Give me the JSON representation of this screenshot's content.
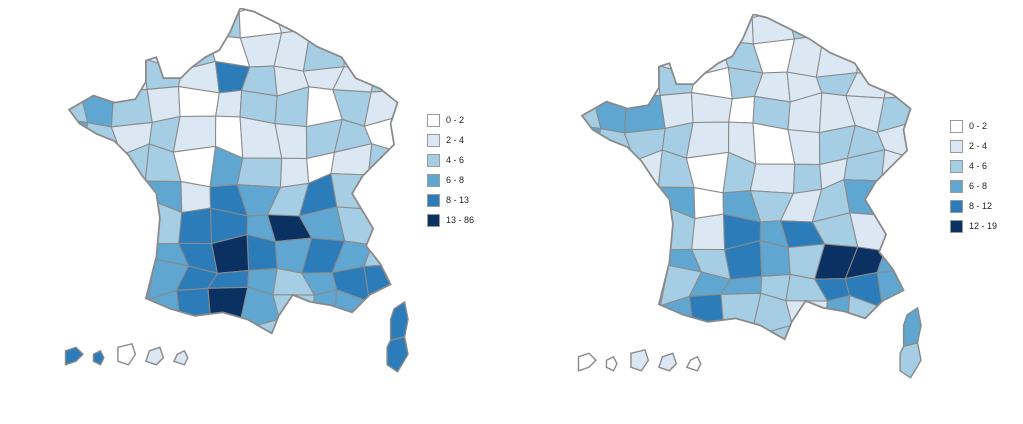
{
  "figure": {
    "description": "Two side-by-side choropleth maps of France departments with binned blue color scales",
    "background": "#ffffff",
    "border_color": "#8a8a8a"
  },
  "chart_data": [
    {
      "type": "heatmap",
      "subtype": "choropleth",
      "region": "France departments (left map)",
      "legend_position": "right",
      "legend": [
        {
          "label": "0 - 2",
          "color": "#ffffff"
        },
        {
          "label": "2 - 4",
          "color": "#dbe8f4"
        },
        {
          "label": "4 - 6",
          "color": "#a5cde3"
        },
        {
          "label": "6 - 8",
          "color": "#5fa6d1"
        },
        {
          "label": "8 - 13",
          "color": "#2c7cba"
        },
        {
          "label": "13 - 86",
          "color": "#0a3161"
        }
      ],
      "cells": [
        "1101120110110",
        "2111201121101",
        "1212142111210",
        "2321012202120",
        "3212101122011",
        "1122032101210",
        "2213143242421",
        "1322443532321",
        "2233454343242",
        "1123443234452",
        "2233453233421",
        "1122342123210"
      ],
      "corsica": [
        4,
        4
      ],
      "islands": [
        4,
        4,
        0,
        1,
        1
      ]
    },
    {
      "type": "heatmap",
      "subtype": "choropleth",
      "region": "France departments (right map)",
      "legend_position": "right",
      "legend": [
        {
          "label": "0 - 2",
          "color": "#ffffff"
        },
        {
          "label": "2 - 4",
          "color": "#dbe8f4"
        },
        {
          "label": "4 - 6",
          "color": "#a5cde3"
        },
        {
          "label": "6 - 8",
          "color": "#5fa6d1"
        },
        {
          "label": "8 - 12",
          "color": "#2c7cba"
        },
        {
          "label": "12 - 19",
          "color": "#0a3161"
        }
      ],
      "cells": [
        "1011011210101",
        "1121120111011",
        "2212021121120",
        "2331102111210",
        "3222110122101",
        "1212021212110",
        "2123032123021",
        "1222143421120",
        "2123243255321",
        "1122332244321",
        "2233422132210",
        "1122232112120"
      ],
      "corsica": [
        3,
        2
      ],
      "islands": [
        0,
        0,
        1,
        1,
        0
      ]
    }
  ]
}
